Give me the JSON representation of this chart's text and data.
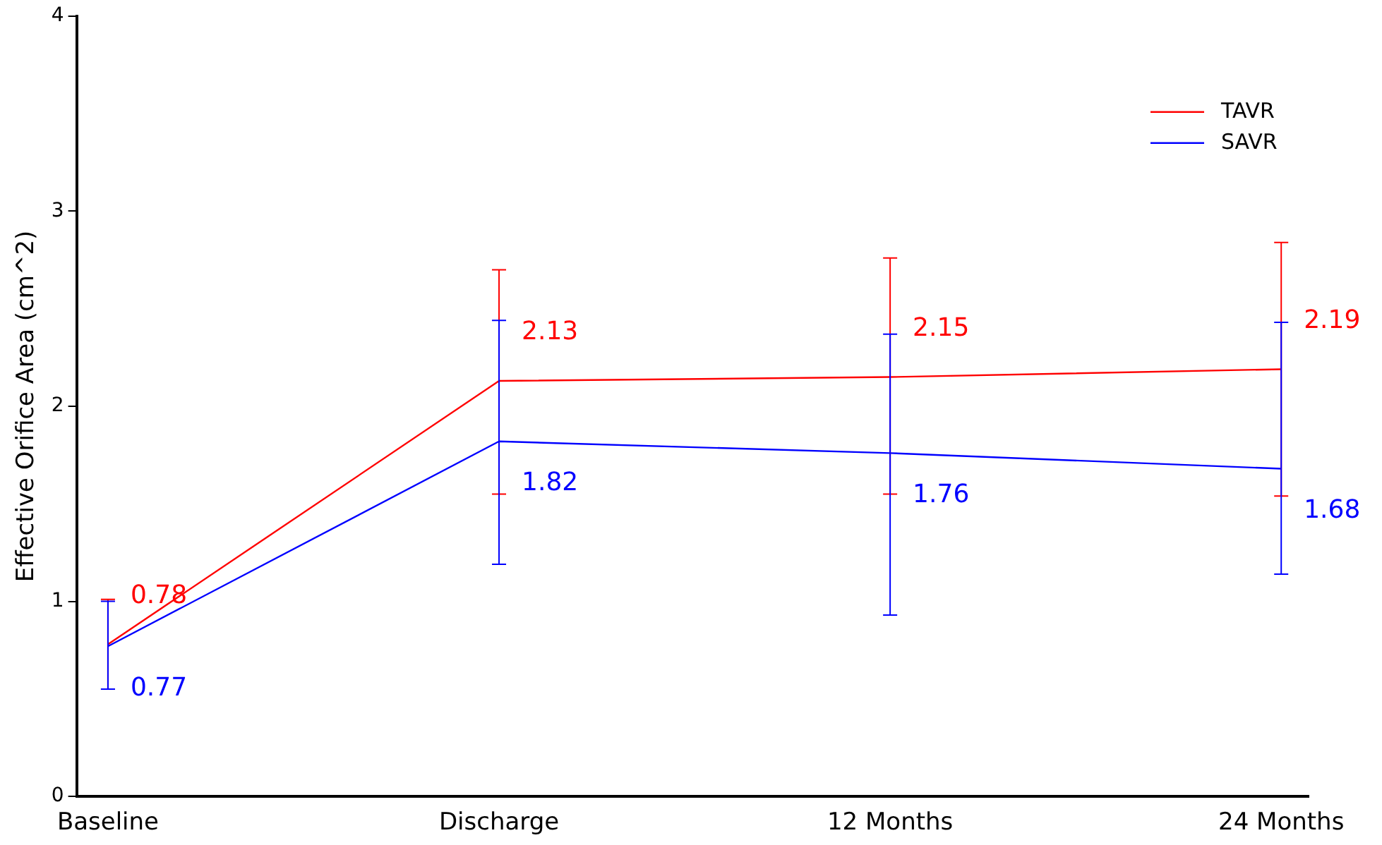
{
  "chart_data": {
    "type": "line",
    "ylabel": "Effective Orifice Area (cm^2)",
    "categories": [
      "Baseline",
      "Discharge",
      "12 Months",
      "24 Months"
    ],
    "series": [
      {
        "name": "TAVR",
        "color": "#ff0000",
        "values": [
          0.78,
          2.13,
          2.15,
          2.19
        ],
        "errors": [
          [
            0.55,
            1.01
          ],
          [
            1.55,
            2.7
          ],
          [
            1.55,
            2.76
          ],
          [
            1.54,
            2.84
          ]
        ]
      },
      {
        "name": "SAVR",
        "color": "#0000ff",
        "values": [
          0.77,
          1.82,
          1.76,
          1.68
        ],
        "errors": [
          [
            0.55,
            1.0
          ],
          [
            1.19,
            2.44
          ],
          [
            0.93,
            2.37
          ],
          [
            1.14,
            2.43
          ]
        ]
      }
    ],
    "ylim": [
      0,
      4
    ],
    "yticks": [
      0,
      1,
      2,
      3,
      4
    ],
    "grid": false,
    "legend": "top right",
    "marker": "none",
    "line_style": "solid",
    "data_labels": true
  }
}
